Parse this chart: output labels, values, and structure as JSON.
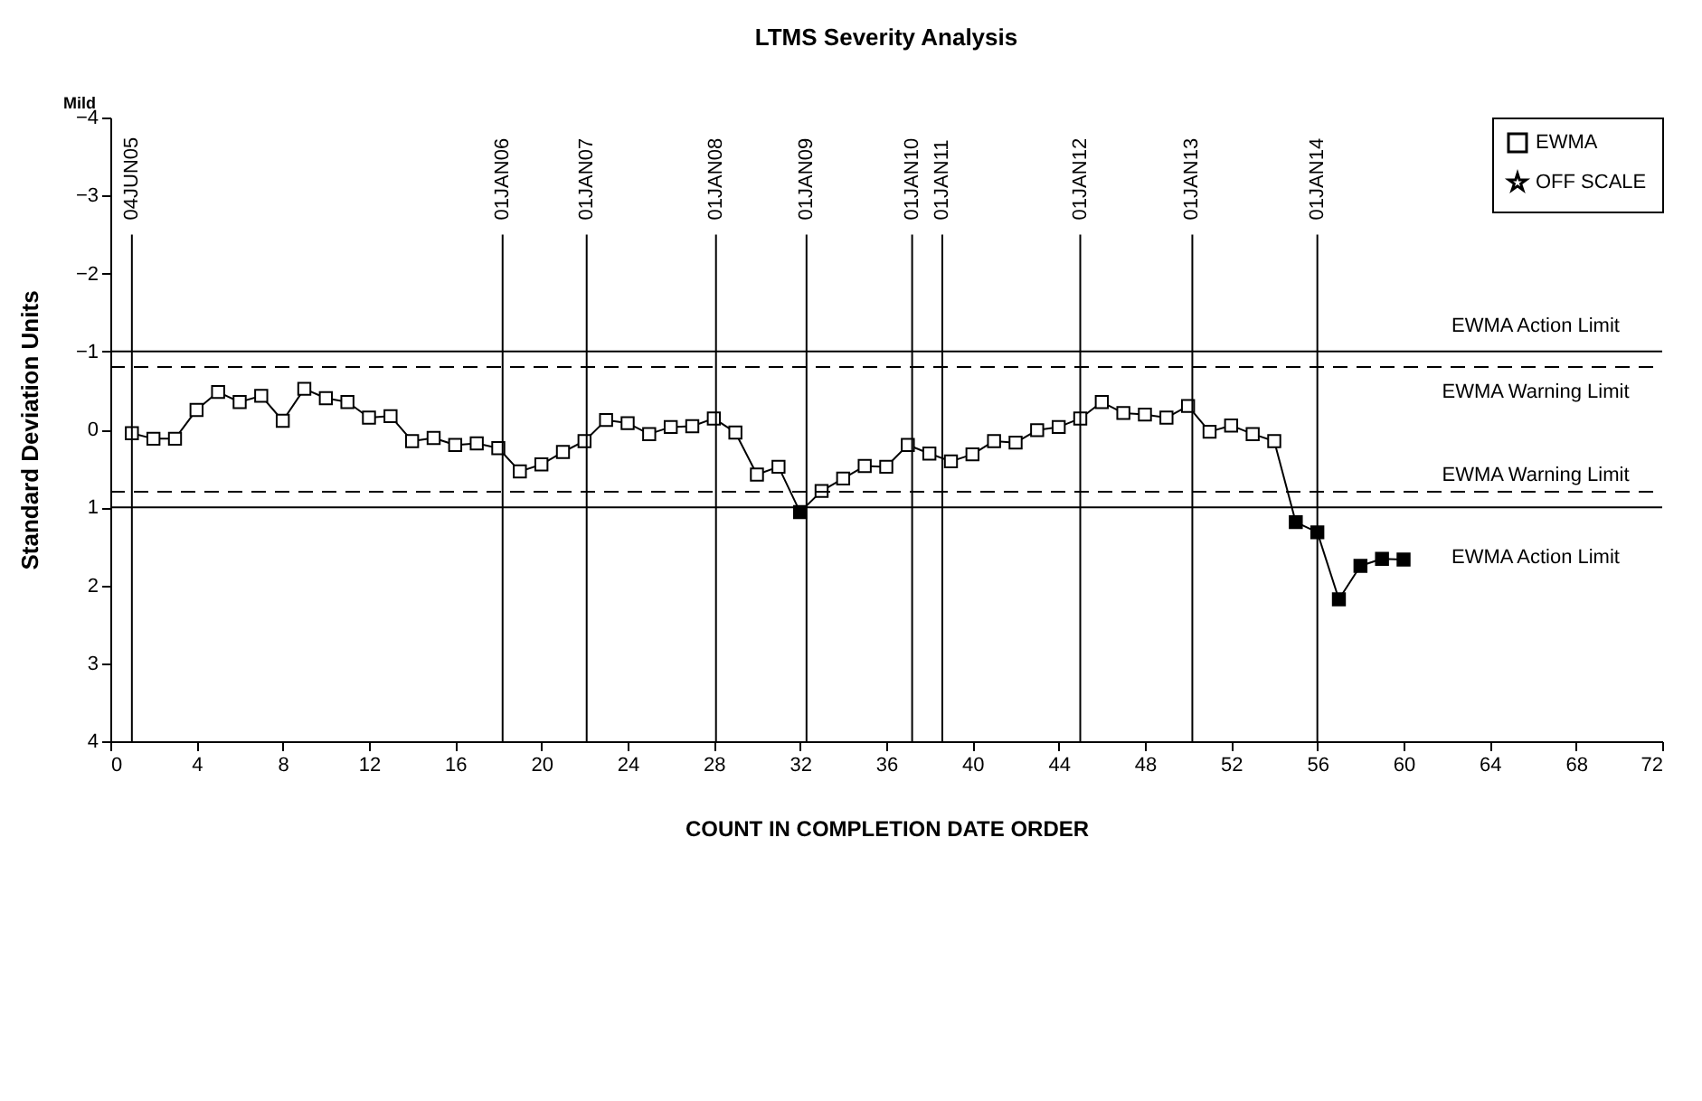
{
  "chart_data": {
    "type": "line",
    "title": "LTMS Severity Analysis",
    "xlabel": "COUNT IN COMPLETION DATE ORDER",
    "ylabel": "Standard Deviation Units",
    "x": [
      1,
      2,
      3,
      4,
      5,
      6,
      7,
      8,
      9,
      10,
      11,
      12,
      13,
      14,
      15,
      16,
      17,
      18,
      19,
      20,
      21,
      22,
      23,
      24,
      25,
      26,
      27,
      28,
      29,
      30,
      31,
      32,
      33,
      34,
      35,
      36,
      37,
      38,
      39,
      40,
      41,
      42,
      43,
      44,
      45,
      46,
      47,
      48,
      49,
      50,
      51,
      52,
      53,
      54,
      55,
      56,
      57,
      58,
      59,
      60
    ],
    "series": [
      {
        "name": "EWMA",
        "color": "#000000",
        "marker": "square",
        "values": [
          0.05,
          0.12,
          0.12,
          -0.25,
          -0.48,
          -0.35,
          -0.43,
          -0.11,
          -0.52,
          -0.4,
          -0.35,
          -0.15,
          -0.17,
          0.15,
          0.11,
          0.2,
          0.18,
          0.24,
          0.54,
          0.45,
          0.29,
          0.15,
          -0.12,
          -0.08,
          0.06,
          -0.03,
          -0.04,
          -0.14,
          0.04,
          0.58,
          0.48,
          1.06,
          0.79,
          0.63,
          0.47,
          0.48,
          0.2,
          0.31,
          0.41,
          0.32,
          0.15,
          0.17,
          0.01,
          -0.03,
          -0.14,
          -0.35,
          -0.21,
          -0.19,
          -0.15,
          -0.3,
          0.03,
          -0.05,
          0.06,
          0.15,
          1.19,
          1.32,
          2.18,
          1.75,
          1.66,
          1.67
        ],
        "colors": [
          "#ffffff",
          "#ffffff",
          "#ffffff",
          "#ffffff",
          "#ffffff",
          "#ffffff",
          "#ffffff",
          "#ffffff",
          "#ffffff",
          "#ffffff",
          "#ffffff",
          "#ffffff",
          "#ffffff",
          "#ffffff",
          "#ffffff",
          "#ffffff",
          "#ffffff",
          "#ffffff",
          "#ffffff",
          "#ffffff",
          "#ffffff",
          "#ffffff",
          "#ffffff",
          "#ffffff",
          "#ffffff",
          "#ffffff",
          "#ffffff",
          "#ffffff",
          "#ffffff",
          "#ffffff",
          "#ffffff",
          "#000000",
          "#ffffff",
          "#ffffff",
          "#ffffff",
          "#ffffff",
          "#ffffff",
          "#ffffff",
          "#ffffff",
          "#ffffff",
          "#ffffff",
          "#ffffff",
          "#ffffff",
          "#ffffff",
          "#ffffff",
          "#ffffff",
          "#ffffff",
          "#ffffff",
          "#ffffff",
          "#ffffff",
          "#ffffff",
          "#ffffff",
          "#ffffff",
          "#ffffff",
          "#000000",
          "#000000",
          "#000000",
          "#000000",
          "#000000",
          "#000000"
        ]
      },
      {
        "name": "OFF SCALE",
        "color": "#000000",
        "marker": "star",
        "values": [
          null,
          null,
          null,
          null,
          null,
          null,
          null,
          null,
          null,
          null,
          null,
          null,
          null,
          null,
          null,
          null,
          null,
          null,
          null,
          null,
          null,
          null,
          null,
          null,
          null,
          null,
          null,
          null,
          null,
          null,
          null,
          null,
          null,
          null,
          null,
          null,
          null,
          null,
          null,
          null,
          null,
          null,
          null,
          null,
          null,
          null,
          null,
          null,
          null,
          null,
          null,
          null,
          null,
          null,
          null,
          null,
          null,
          null,
          null,
          null
        ]
      }
    ],
    "xlim": [
      0,
      72
    ],
    "xticks": [
      0,
      4,
      8,
      12,
      16,
      20,
      24,
      28,
      32,
      36,
      40,
      44,
      48,
      52,
      56,
      60,
      64,
      68,
      72
    ],
    "ylim": [
      4,
      -4
    ],
    "yticks": [
      -4,
      -3,
      -2,
      -1,
      0,
      1,
      2,
      3,
      4
    ],
    "ref_lines": [
      {
        "axis": "y",
        "value": -1,
        "label": "EWMA Action Limit",
        "line_style": "solid"
      },
      {
        "axis": "y",
        "value": -0.8,
        "label": "EWMA Warning Limit",
        "line_style": "dashed"
      },
      {
        "axis": "y",
        "value": 0.8,
        "label": "EWMA Warning Limit",
        "line_style": "dashed"
      },
      {
        "axis": "y",
        "value": 1,
        "label": "EWMA Action Limit",
        "line_style": "solid"
      },
      {
        "axis": "x",
        "value": 1,
        "label": "04JUN05"
      },
      {
        "axis": "x",
        "value": 18.2,
        "label": "01JAN06"
      },
      {
        "axis": "x",
        "value": 22.1,
        "label": "01JAN07"
      },
      {
        "axis": "x",
        "value": 28.1,
        "label": "01JAN08"
      },
      {
        "axis": "x",
        "value": 32.3,
        "label": "01JAN09"
      },
      {
        "axis": "x",
        "value": 37.2,
        "label": "01JAN10"
      },
      {
        "axis": "x",
        "value": 38.6,
        "label": "01JAN11"
      },
      {
        "axis": "x",
        "value": 45.0,
        "label": "01JAN12"
      },
      {
        "axis": "x",
        "value": 50.2,
        "label": "01JAN13"
      },
      {
        "axis": "x",
        "value": 56.0,
        "label": "01JAN14"
      }
    ],
    "annotations": [
      "Mild"
    ],
    "legend": "top right",
    "grid": false
  }
}
